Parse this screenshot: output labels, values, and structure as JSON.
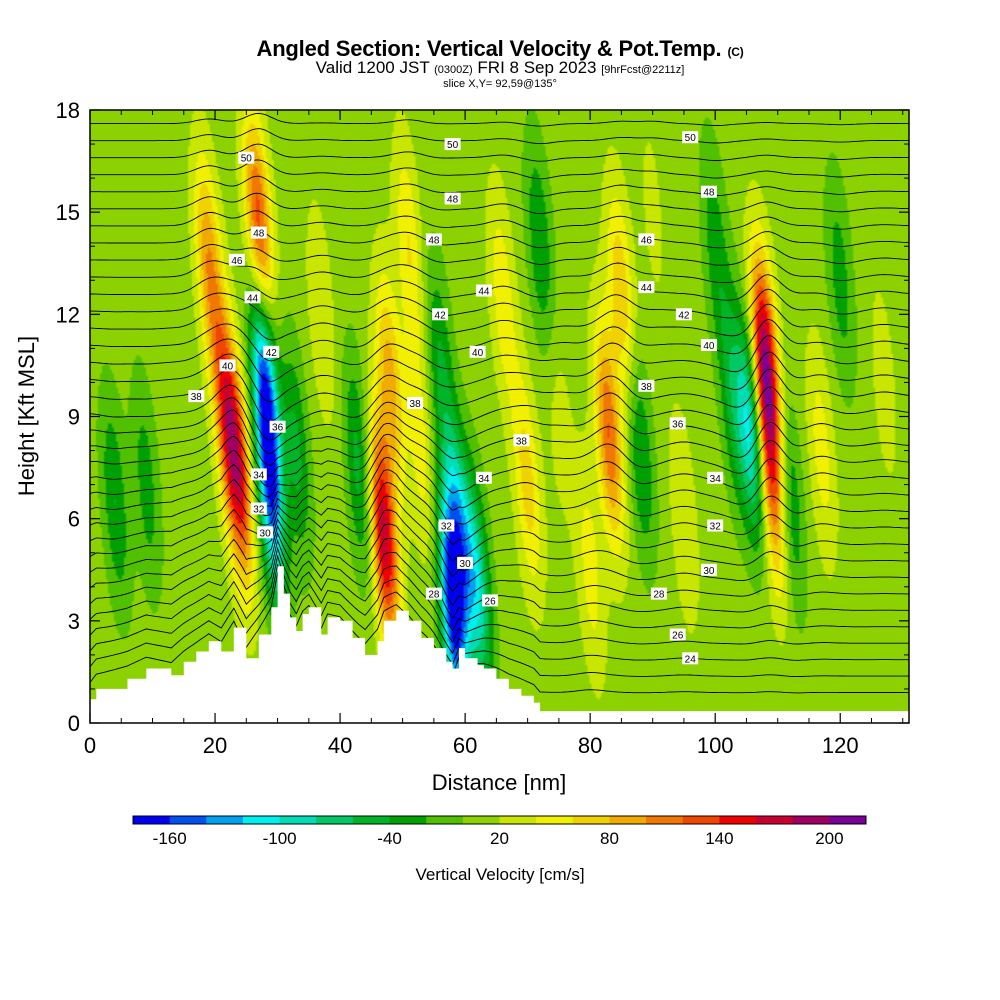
{
  "header": {
    "title": "Angled Section: Vertical Velocity & Pot.Temp.",
    "title_unit": "(C)",
    "valid_prefix": "Valid 1200 JST",
    "valid_zulu": "(0300Z)",
    "valid_date": "FRI 8 Sep 2023",
    "forecast": "[9hrFcst@2211z]",
    "slice": "slice X,Y= 92,59@135°"
  },
  "chart_data": {
    "type": "heatmap",
    "xlabel": "Distance [nm]",
    "ylabel": "Height [Kft MSL]",
    "xlim": [
      0,
      131
    ],
    "ylim": [
      0,
      18
    ],
    "x_ticks": [
      "0",
      "20",
      "40",
      "60",
      "80",
      "100",
      "120"
    ],
    "x_tick_values": [
      0,
      20,
      40,
      60,
      80,
      100,
      120
    ],
    "y_ticks": [
      "0",
      "3",
      "6",
      "9",
      "12",
      "15",
      "18"
    ],
    "y_tick_values": [
      0,
      3,
      6,
      9,
      12,
      15,
      18
    ],
    "background_value": 10,
    "terrain": [
      [
        0,
        0.7
      ],
      [
        1,
        1.0
      ],
      [
        6,
        1.3
      ],
      [
        9,
        1.6
      ],
      [
        13,
        1.4
      ],
      [
        15,
        1.8
      ],
      [
        17,
        2.1
      ],
      [
        19,
        2.4
      ],
      [
        21,
        2.1
      ],
      [
        23,
        2.8
      ],
      [
        25,
        1.9
      ],
      [
        27,
        2.6
      ],
      [
        29,
        3.4
      ],
      [
        30,
        4.6
      ],
      [
        31,
        3.8
      ],
      [
        32,
        3.1
      ],
      [
        33,
        2.7
      ],
      [
        34,
        3.2
      ],
      [
        35,
        3.4
      ],
      [
        37,
        2.6
      ],
      [
        38,
        3.1
      ],
      [
        40,
        3.0
      ],
      [
        42,
        2.5
      ],
      [
        44,
        2.0
      ],
      [
        46,
        2.4
      ],
      [
        47,
        3.0
      ],
      [
        49,
        3.3
      ],
      [
        51,
        3.0
      ],
      [
        53,
        2.5
      ],
      [
        55,
        2.2
      ],
      [
        57,
        1.8
      ],
      [
        58,
        1.6
      ],
      [
        59,
        2.2
      ],
      [
        60,
        1.9
      ],
      [
        62,
        1.7
      ],
      [
        63,
        1.6
      ],
      [
        65,
        1.3
      ],
      [
        67,
        1.0
      ],
      [
        69,
        0.8
      ],
      [
        71,
        0.6
      ],
      [
        72,
        0.35
      ],
      [
        131,
        0.35
      ]
    ],
    "velocity_cells": [
      {
        "x": 4,
        "z": 6.5,
        "v": -40
      },
      {
        "x": 9,
        "z": 7.0,
        "v": -30
      },
      {
        "x": 19,
        "z": 13.5,
        "v": 95
      },
      {
        "x": 22,
        "z": 9.0,
        "v": 130
      },
      {
        "x": 24,
        "z": 7.0,
        "v": 120
      },
      {
        "x": 27,
        "z": 14.5,
        "v": 140
      },
      {
        "x": 28,
        "z": 10.0,
        "v": -150
      },
      {
        "x": 29,
        "z": 6.5,
        "v": -120
      },
      {
        "x": 33,
        "z": 8.0,
        "v": -45
      },
      {
        "x": 37,
        "z": 12.0,
        "v": 40
      },
      {
        "x": 43,
        "z": 7.5,
        "v": -50
      },
      {
        "x": 47,
        "z": 5.5,
        "v": 175
      },
      {
        "x": 48,
        "z": 10.0,
        "v": 90
      },
      {
        "x": 51,
        "z": 14.0,
        "v": 60
      },
      {
        "x": 53,
        "z": 8.0,
        "v": 50
      },
      {
        "x": 56,
        "z": 10.5,
        "v": -40
      },
      {
        "x": 58,
        "z": 3.3,
        "v": -160
      },
      {
        "x": 59,
        "z": 5.5,
        "v": -100
      },
      {
        "x": 62,
        "z": 4.0,
        "v": -90
      },
      {
        "x": 66,
        "z": 12.5,
        "v": 55
      },
      {
        "x": 70,
        "z": 7.0,
        "v": 70
      },
      {
        "x": 72,
        "z": 14.0,
        "v": -40
      },
      {
        "x": 75,
        "z": 9.0,
        "v": 30
      },
      {
        "x": 80,
        "z": 4.5,
        "v": 50
      },
      {
        "x": 83,
        "z": 8.5,
        "v": 120
      },
      {
        "x": 85,
        "z": 12.5,
        "v": 80
      },
      {
        "x": 88,
        "z": 8.0,
        "v": -45
      },
      {
        "x": 90,
        "z": 15.0,
        "v": 25
      },
      {
        "x": 95,
        "z": 6.0,
        "v": 40
      },
      {
        "x": 100,
        "z": 14.0,
        "v": -30
      },
      {
        "x": 103,
        "z": 9.5,
        "v": -50
      },
      {
        "x": 106,
        "z": 8.5,
        "v": -110
      },
      {
        "x": 108,
        "z": 10.5,
        "v": 195
      },
      {
        "x": 109,
        "z": 7.0,
        "v": 110
      },
      {
        "x": 112,
        "z": 6.5,
        "v": -40
      },
      {
        "x": 117,
        "z": 8.0,
        "v": 50
      },
      {
        "x": 120,
        "z": 13.0,
        "v": -30
      },
      {
        "x": 127,
        "z": 10.0,
        "v": 30
      }
    ],
    "contour_labels": [
      {
        "text": "50",
        "x": 25.0,
        "z": 16.6
      },
      {
        "text": "48",
        "x": 27.0,
        "z": 14.4
      },
      {
        "text": "46",
        "x": 23.5,
        "z": 13.6
      },
      {
        "text": "44",
        "x": 26.0,
        "z": 12.5
      },
      {
        "text": "42",
        "x": 29.0,
        "z": 10.9
      },
      {
        "text": "40",
        "x": 22.0,
        "z": 10.5
      },
      {
        "text": "38",
        "x": 17.0,
        "z": 9.6
      },
      {
        "text": "36",
        "x": 30.0,
        "z": 8.7
      },
      {
        "text": "34",
        "x": 27.0,
        "z": 7.3
      },
      {
        "text": "32",
        "x": 27.0,
        "z": 6.3
      },
      {
        "text": "30",
        "x": 28.0,
        "z": 5.6
      },
      {
        "text": "50",
        "x": 58.0,
        "z": 17.0
      },
      {
        "text": "48",
        "x": 58.0,
        "z": 15.4
      },
      {
        "text": "48",
        "x": 55.0,
        "z": 14.2
      },
      {
        "text": "44",
        "x": 63.0,
        "z": 12.7
      },
      {
        "text": "42",
        "x": 56.0,
        "z": 12.0
      },
      {
        "text": "40",
        "x": 62.0,
        "z": 10.9
      },
      {
        "text": "38",
        "x": 52.0,
        "z": 9.4
      },
      {
        "text": "38",
        "x": 69.0,
        "z": 8.3
      },
      {
        "text": "34",
        "x": 63.0,
        "z": 7.2
      },
      {
        "text": "32",
        "x": 57.0,
        "z": 5.8
      },
      {
        "text": "30",
        "x": 60.0,
        "z": 4.7
      },
      {
        "text": "28",
        "x": 55.0,
        "z": 3.8
      },
      {
        "text": "26",
        "x": 64.0,
        "z": 3.6
      },
      {
        "text": "50",
        "x": 96.0,
        "z": 17.2
      },
      {
        "text": "48",
        "x": 99.0,
        "z": 15.6
      },
      {
        "text": "46",
        "x": 89.0,
        "z": 14.2
      },
      {
        "text": "44",
        "x": 89.0,
        "z": 12.8
      },
      {
        "text": "42",
        "x": 95.0,
        "z": 12.0
      },
      {
        "text": "40",
        "x": 99.0,
        "z": 11.1
      },
      {
        "text": "38",
        "x": 89.0,
        "z": 9.9
      },
      {
        "text": "36",
        "x": 94.0,
        "z": 8.8
      },
      {
        "text": "34",
        "x": 100.0,
        "z": 7.2
      },
      {
        "text": "32",
        "x": 100.0,
        "z": 5.8
      },
      {
        "text": "30",
        "x": 99.0,
        "z": 4.5
      },
      {
        "text": "28",
        "x": 91.0,
        "z": 3.8
      },
      {
        "text": "26",
        "x": 94.0,
        "z": 2.6
      },
      {
        "text": "24",
        "x": 96.0,
        "z": 1.9
      }
    ]
  },
  "colorbar": {
    "title": "Vertical Velocity [cm/s]",
    "tick_labels": [
      "-160",
      "-100",
      "-40",
      "20",
      "80",
      "140",
      "200"
    ],
    "tick_values": [
      -160,
      -100,
      -40,
      20,
      80,
      140,
      200
    ],
    "range": [
      -180,
      220
    ],
    "colors": [
      "#0000f0",
      "#0050f0",
      "#00a0f0",
      "#00f0f0",
      "#00dcb4",
      "#00c864",
      "#00b428",
      "#00a000",
      "#50c000",
      "#8cd200",
      "#c8e600",
      "#f0f000",
      "#f0d200",
      "#f0aa00",
      "#f07800",
      "#f04600",
      "#f00000",
      "#c80032",
      "#a00064",
      "#780096"
    ]
  }
}
